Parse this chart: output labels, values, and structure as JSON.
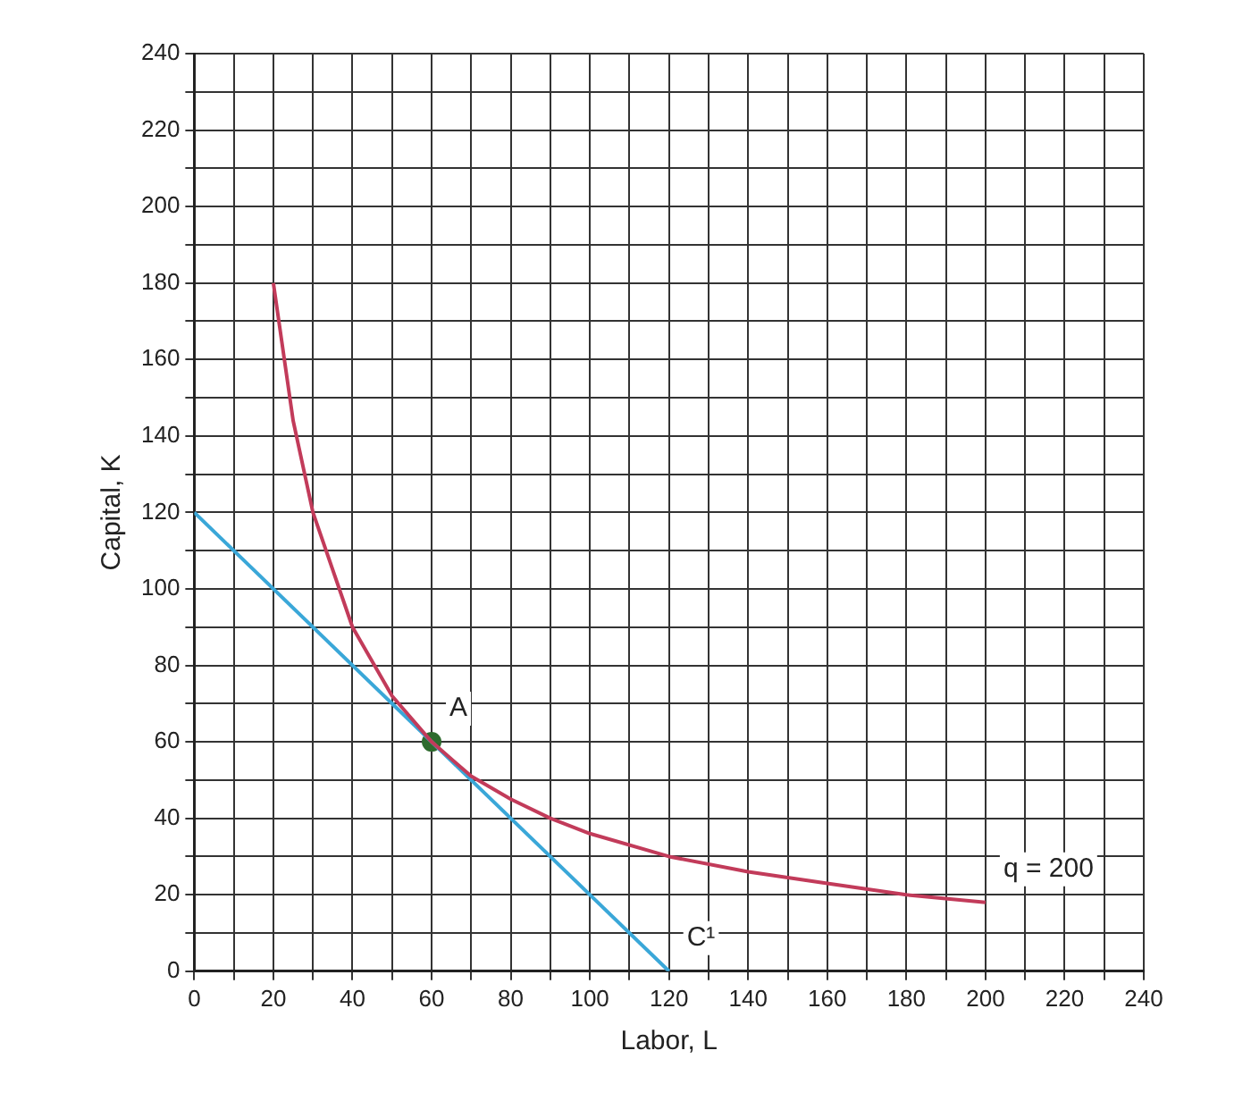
{
  "chart_data": {
    "type": "line",
    "xlabel": "Labor, L",
    "ylabel": "Capital, K",
    "xlim": [
      0,
      240
    ],
    "ylim": [
      0,
      240
    ],
    "xticks": [
      0,
      {
        "value": 10,
        "label": null
      },
      20,
      {
        "value": 30,
        "label": null
      },
      40,
      {
        "value": 50,
        "label": null
      },
      60,
      {
        "value": 70,
        "label": null
      },
      80,
      {
        "value": 90,
        "label": null
      },
      100,
      {
        "value": 110,
        "label": null
      },
      120,
      {
        "value": 130,
        "label": null
      },
      140,
      {
        "value": 150,
        "label": null
      },
      160,
      {
        "value": 170,
        "label": null
      },
      180,
      {
        "value": 190,
        "label": null
      },
      200,
      {
        "value": 210,
        "label": null
      },
      220,
      {
        "value": 230,
        "label": null
      },
      240
    ],
    "yticks": [
      0,
      {
        "value": 10,
        "label": null
      },
      20,
      {
        "value": 30,
        "label": null
      },
      40,
      {
        "value": 50,
        "label": null
      },
      60,
      {
        "value": 70,
        "label": null
      },
      80,
      {
        "value": 90,
        "label": null
      },
      100,
      {
        "value": 110,
        "label": null
      },
      120,
      {
        "value": 130,
        "label": null
      },
      140,
      {
        "value": 150,
        "label": null
      },
      160,
      {
        "value": 170,
        "label": null
      },
      180,
      {
        "value": 190,
        "label": null
      },
      200,
      {
        "value": 210,
        "label": null
      },
      220,
      {
        "value": 230,
        "label": null
      },
      240
    ],
    "grid": true,
    "legend": false,
    "series": [
      {
        "color": "#c23b5a",
        "marker": "none",
        "x": [
          20,
          25,
          30,
          40,
          50,
          60,
          70,
          80,
          90,
          100,
          120,
          140,
          160,
          180,
          200
        ],
        "values": [
          180,
          144,
          120,
          90,
          72,
          60,
          51,
          45,
          40,
          36,
          30,
          26,
          23,
          20,
          18
        ]
      },
      {
        "color": "#3aa7d8",
        "marker": "none",
        "x": [
          0,
          120
        ],
        "values": [
          120,
          0
        ]
      },
      {
        "type": "scatter",
        "color": "#2e6b2e",
        "marker": "circle",
        "x": [
          60
        ],
        "values": [
          60
        ]
      }
    ],
    "annotations": [
      {
        "text": "A",
        "x": 60,
        "y": 60
      },
      {
        "text": "C¹",
        "x": 120,
        "y": 0
      },
      {
        "text": "q = 200",
        "x": 200,
        "y": 18
      }
    ]
  }
}
